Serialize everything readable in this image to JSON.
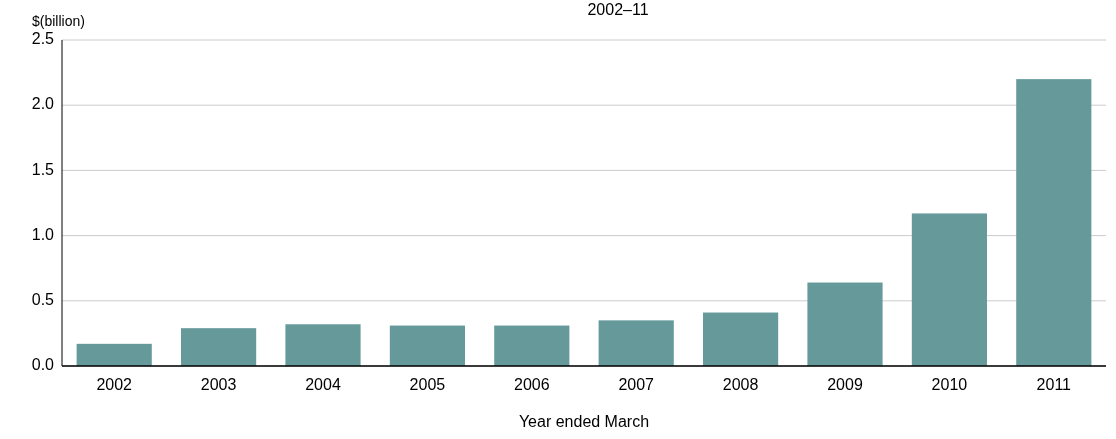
{
  "chart_data": {
    "type": "bar",
    "title": "2002–11",
    "ylabel": "$(billion)",
    "xlabel": "Year ended March",
    "categories": [
      "2002",
      "2003",
      "2004",
      "2005",
      "2006",
      "2007",
      "2008",
      "2009",
      "2010",
      "2011"
    ],
    "values": [
      0.17,
      0.29,
      0.32,
      0.31,
      0.31,
      0.35,
      0.41,
      0.64,
      1.17,
      2.2
    ],
    "color": "#669999",
    "ylim": [
      0,
      2.5
    ],
    "yticks": [
      {
        "value": 0,
        "label": "0.0"
      },
      {
        "value": 0.5,
        "label": "0.5"
      },
      {
        "value": 1,
        "label": "1.0"
      },
      {
        "value": 1.5,
        "label": "1.5"
      },
      {
        "value": 2,
        "label": "2.0"
      },
      {
        "value": 2.5,
        "label": "2.5"
      }
    ],
    "grid": "y"
  }
}
